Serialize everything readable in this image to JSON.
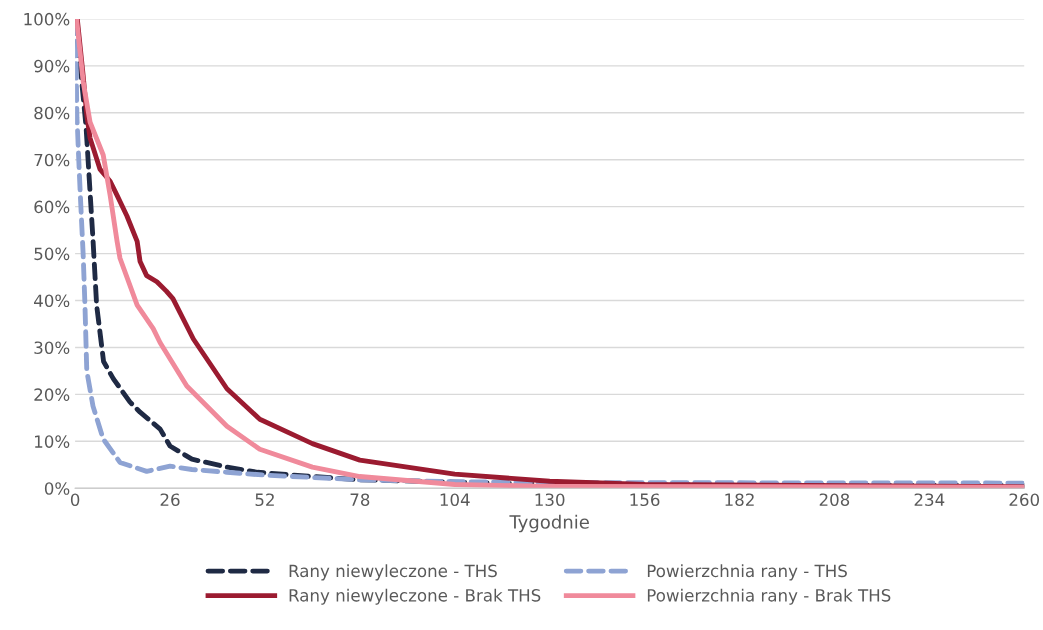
{
  "chart_data": {
    "type": "line",
    "xlabel": "Tygodnie",
    "xlim": [
      0,
      260
    ],
    "xticks": [
      0,
      26,
      52,
      78,
      104,
      130,
      156,
      182,
      208,
      234,
      260
    ],
    "ylim": [
      0,
      1
    ],
    "yticks": [
      {
        "value": 0,
        "label": "0%"
      },
      {
        "value": 0.1,
        "label": "10%"
      },
      {
        "value": 0.2,
        "label": "20%"
      },
      {
        "value": 0.3,
        "label": "30%"
      },
      {
        "value": 0.4,
        "label": "40%"
      },
      {
        "value": 0.5,
        "label": "50%"
      },
      {
        "value": 0.6,
        "label": "60%"
      },
      {
        "value": 0.7,
        "label": "70%"
      },
      {
        "value": 0.8,
        "label": "80%"
      },
      {
        "value": 0.9,
        "label": "90%"
      },
      {
        "value": 1,
        "label": "100%"
      }
    ],
    "grid": "y",
    "legend": "bottom",
    "marker": "none",
    "series": [
      {
        "name": "Rany niewyleczone - THS",
        "color": "#1f2a44",
        "line_style": "dashed",
        "x": [
          0,
          1.4,
          3,
          4.9,
          5.9,
          7.8,
          10.5,
          15,
          17.8,
          23.3,
          26,
          32,
          41.6,
          50,
          65,
          78,
          104,
          130,
          260
        ],
        "values": [
          1,
          0.9,
          0.77,
          0.53,
          0.39,
          0.27,
          0.233,
          0.184,
          0.162,
          0.126,
          0.09,
          0.062,
          0.045,
          0.034,
          0.025,
          0.018,
          0.013,
          0.008,
          0.006
        ]
      },
      {
        "name": "Powierzchnia rany - THS",
        "color": "#8ea3d3",
        "line_style": "dashed",
        "x": [
          0,
          0.2,
          0.5,
          1.4,
          2.2,
          2.7,
          3.2,
          4.9,
          7.7,
          12.3,
          19.6,
          26,
          32,
          41.6,
          52,
          78,
          104,
          130,
          260
        ],
        "values": [
          1,
          0.95,
          0.79,
          0.63,
          0.5,
          0.39,
          0.25,
          0.175,
          0.105,
          0.055,
          0.036,
          0.047,
          0.04,
          0.034,
          0.028,
          0.018,
          0.014,
          0.012,
          0.011
        ]
      },
      {
        "name": "Rany niewyleczone - Brak THS",
        "color": "#9b1b30",
        "line_style": "solid",
        "x": [
          0.6,
          2.2,
          3.2,
          4.1,
          6.8,
          9.6,
          11.5,
          14.2,
          17,
          17.8,
          19.6,
          22.4,
          25,
          26.8,
          32.4,
          41.6,
          50.6,
          65,
          78,
          104,
          130,
          156,
          260
        ],
        "values": [
          1,
          0.88,
          0.795,
          0.746,
          0.68,
          0.654,
          0.624,
          0.58,
          0.526,
          0.483,
          0.453,
          0.44,
          0.42,
          0.404,
          0.318,
          0.212,
          0.147,
          0.095,
          0.06,
          0.03,
          0.015,
          0.008,
          0.003
        ]
      },
      {
        "name": "Powierzchnia rany - Brak THS",
        "color": "#f08a9b",
        "line_style": "solid",
        "x": [
          0.4,
          2.2,
          4.1,
          7.7,
          9.6,
          11.5,
          12.3,
          17,
          21.4,
          23.3,
          30.6,
          41.6,
          50.6,
          65,
          78,
          104,
          130,
          260
        ],
        "values": [
          1,
          0.867,
          0.78,
          0.71,
          0.624,
          0.526,
          0.49,
          0.39,
          0.34,
          0.31,
          0.218,
          0.132,
          0.083,
          0.045,
          0.025,
          0.008,
          0.004,
          0.002
        ]
      }
    ]
  }
}
